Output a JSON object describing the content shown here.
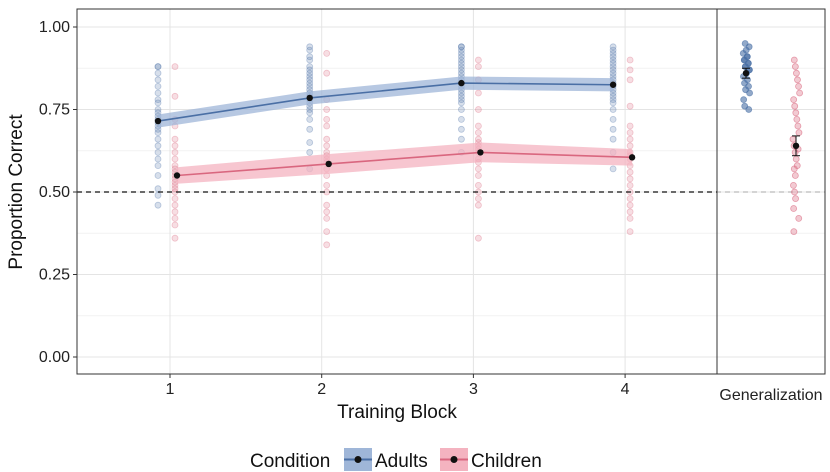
{
  "chart_data": [
    {
      "type": "line",
      "panel": "training",
      "xlabel": "Training Block",
      "ylabel": "Proportion Correct",
      "categories": [
        "1",
        "2",
        "3",
        "4"
      ],
      "ylim": [
        0,
        1
      ],
      "yticks": [
        "0.00",
        "0.25",
        "0.50",
        "0.75",
        "1.00"
      ],
      "grid": true,
      "chance_line": 0.5,
      "series": [
        {
          "name": "Adults",
          "color": "#4a6fa5",
          "band_color": "#9fb6d8",
          "values": [
            0.715,
            0.785,
            0.83,
            0.825
          ],
          "ci_lower": [
            0.695,
            0.765,
            0.81,
            0.805
          ],
          "ci_upper": [
            0.735,
            0.805,
            0.85,
            0.845
          ],
          "individual_points": [
            [
              0.46,
              0.49,
              0.51,
              0.55,
              0.58,
              0.6,
              0.62,
              0.64,
              0.66,
              0.68,
              0.69,
              0.7,
              0.71,
              0.72,
              0.73,
              0.74,
              0.75,
              0.77,
              0.78,
              0.8,
              0.82,
              0.84,
              0.86,
              0.88,
              0.88
            ],
            [
              0.57,
              0.62,
              0.65,
              0.69,
              0.72,
              0.74,
              0.75,
              0.76,
              0.77,
              0.78,
              0.79,
              0.8,
              0.81,
              0.82,
              0.83,
              0.84,
              0.85,
              0.86,
              0.87,
              0.88,
              0.9,
              0.91,
              0.93,
              0.94
            ],
            [
              0.62,
              0.66,
              0.69,
              0.72,
              0.75,
              0.77,
              0.78,
              0.79,
              0.8,
              0.81,
              0.82,
              0.83,
              0.84,
              0.85,
              0.86,
              0.87,
              0.88,
              0.89,
              0.9,
              0.91,
              0.92,
              0.93,
              0.94,
              0.94
            ],
            [
              0.57,
              0.62,
              0.66,
              0.69,
              0.72,
              0.75,
              0.77,
              0.78,
              0.79,
              0.8,
              0.81,
              0.82,
              0.83,
              0.84,
              0.85,
              0.86,
              0.87,
              0.88,
              0.89,
              0.9,
              0.91,
              0.92,
              0.93,
              0.94
            ]
          ]
        },
        {
          "name": "Children",
          "color": "#d9677f",
          "band_color": "#f4b3c0",
          "values": [
            0.55,
            0.585,
            0.62,
            0.605
          ],
          "ci_lower": [
            0.525,
            0.555,
            0.59,
            0.58
          ],
          "ci_upper": [
            0.575,
            0.615,
            0.65,
            0.63
          ],
          "individual_points": [
            [
              0.36,
              0.4,
              0.42,
              0.44,
              0.46,
              0.48,
              0.5,
              0.51,
              0.52,
              0.53,
              0.54,
              0.55,
              0.56,
              0.57,
              0.58,
              0.6,
              0.62,
              0.64,
              0.66,
              0.7,
              0.72,
              0.79,
              0.88
            ],
            [
              0.34,
              0.38,
              0.42,
              0.44,
              0.46,
              0.5,
              0.52,
              0.55,
              0.57,
              0.59,
              0.6,
              0.61,
              0.62,
              0.64,
              0.66,
              0.7,
              0.72,
              0.75,
              0.78,
              0.86,
              0.92
            ],
            [
              0.36,
              0.46,
              0.48,
              0.5,
              0.52,
              0.55,
              0.57,
              0.59,
              0.6,
              0.62,
              0.63,
              0.64,
              0.65,
              0.66,
              0.68,
              0.7,
              0.75,
              0.8,
              0.84,
              0.88,
              0.9
            ],
            [
              0.38,
              0.42,
              0.44,
              0.46,
              0.48,
              0.5,
              0.52,
              0.54,
              0.56,
              0.58,
              0.6,
              0.61,
              0.62,
              0.64,
              0.66,
              0.68,
              0.7,
              0.76,
              0.84,
              0.87,
              0.9
            ]
          ]
        }
      ]
    },
    {
      "type": "scatter",
      "panel": "generalization",
      "xlabel": "Generalization",
      "ylim": [
        0,
        1
      ],
      "series": [
        {
          "name": "Adults",
          "color": "#4a6fa5",
          "mean": 0.86,
          "error": [
            0.845,
            0.875
          ],
          "individual_points": [
            0.75,
            0.76,
            0.78,
            0.8,
            0.81,
            0.82,
            0.83,
            0.84,
            0.85,
            0.86,
            0.86,
            0.87,
            0.87,
            0.88,
            0.88,
            0.89,
            0.89,
            0.9,
            0.9,
            0.91,
            0.91,
            0.92,
            0.93,
            0.94,
            0.95
          ]
        },
        {
          "name": "Children",
          "color": "#d9677f",
          "mean": 0.64,
          "error": [
            0.61,
            0.67
          ],
          "individual_points": [
            0.38,
            0.42,
            0.45,
            0.48,
            0.5,
            0.52,
            0.55,
            0.57,
            0.58,
            0.6,
            0.62,
            0.63,
            0.64,
            0.66,
            0.68,
            0.7,
            0.72,
            0.74,
            0.76,
            0.78,
            0.8,
            0.82,
            0.84,
            0.86,
            0.88,
            0.9
          ]
        }
      ]
    }
  ],
  "legend": {
    "title": "Condition",
    "items": [
      {
        "label": "Adults",
        "color": "#4a6fa5",
        "band": "#9fb6d8"
      },
      {
        "label": "Children",
        "color": "#d9677f",
        "band": "#f4b3c0"
      }
    ]
  }
}
